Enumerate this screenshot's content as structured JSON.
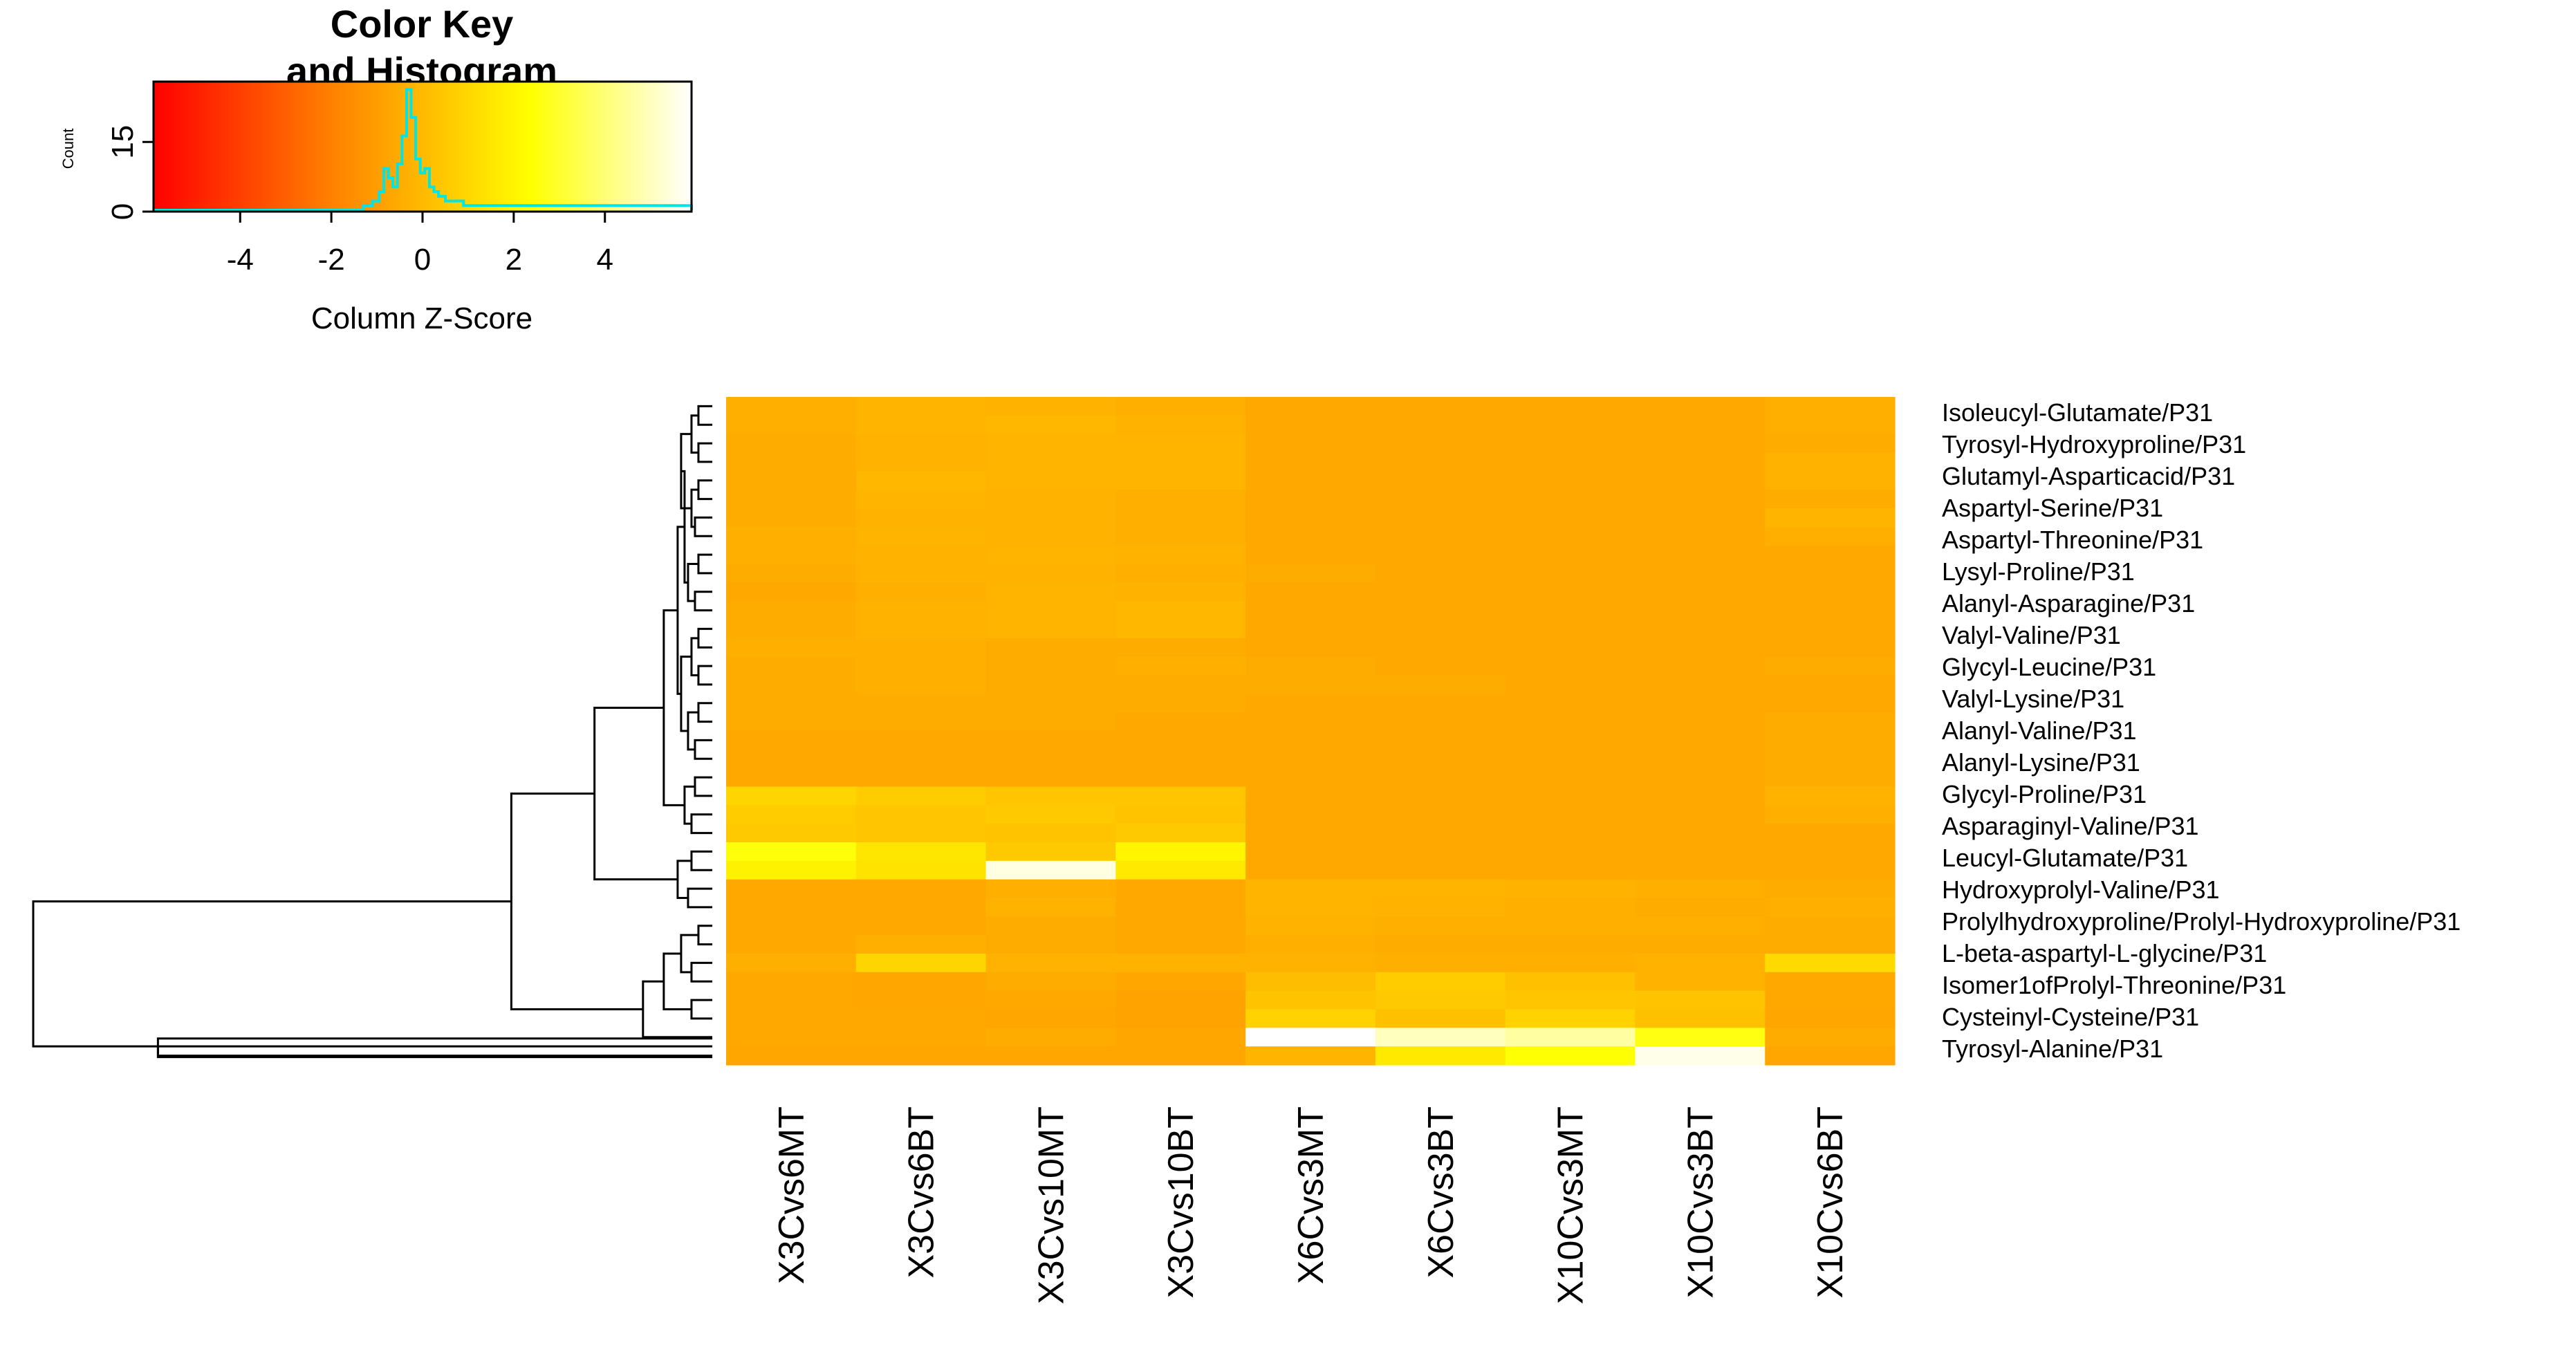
{
  "chart_data": {
    "type": "heatmap",
    "title": "",
    "color_key": {
      "title_line1": "Color Key",
      "title_line2": "and Histogram",
      "xlabel": "Column Z-Score",
      "ylabel": "Count",
      "xlim": [
        -5.9,
        5.9
      ],
      "ylim": [
        0,
        28
      ],
      "x_ticks": [
        -4,
        -2,
        0,
        2,
        4
      ],
      "y_ticks": [
        0,
        15
      ],
      "colors": [
        "#ff0000",
        "#ff8000",
        "#ffff00",
        "#ffffff"
      ],
      "histogram_color": "#00e5e5",
      "histogram": [
        [
          -1.3,
          1
        ],
        [
          -1.1,
          2
        ],
        [
          -0.95,
          4
        ],
        [
          -0.85,
          9
        ],
        [
          -0.75,
          7
        ],
        [
          -0.65,
          5
        ],
        [
          -0.55,
          10
        ],
        [
          -0.45,
          16
        ],
        [
          -0.35,
          26
        ],
        [
          -0.25,
          20
        ],
        [
          -0.15,
          11
        ],
        [
          -0.05,
          8
        ],
        [
          0.05,
          9
        ],
        [
          0.15,
          5
        ],
        [
          0.25,
          4
        ],
        [
          0.35,
          3
        ],
        [
          0.5,
          2
        ],
        [
          0.7,
          2
        ],
        [
          0.9,
          1
        ],
        [
          1.1,
          1
        ],
        [
          1.4,
          1
        ],
        [
          1.8,
          1
        ],
        [
          2.2,
          1
        ],
        [
          2.6,
          1
        ],
        [
          3.0,
          1
        ],
        [
          3.5,
          1
        ],
        [
          4.0,
          1
        ],
        [
          4.6,
          1
        ],
        [
          5.3,
          1
        ],
        [
          5.8,
          1
        ]
      ]
    },
    "columns": [
      "X3Cvs6MT",
      "X3Cvs6BT",
      "X3Cvs10MT",
      "X3Cvs10BT",
      "X6Cvs3MT",
      "X6Cvs3BT",
      "X10Cvs3MT",
      "X10Cvs3BT",
      "X10Cvs6BT"
    ],
    "labeled_rows": [
      "Isoleucyl-Glutamate/P31",
      "Tyrosyl-Hydroxyproline/P31",
      "Glutamyl-Asparticacid/P31",
      "Aspartyl-Serine/P31",
      "Aspartyl-Threonine/P31",
      "Lysyl-Proline/P31",
      "Alanyl-Asparagine/P31",
      "Valyl-Valine/P31",
      "Glycyl-Leucine/P31",
      "Valyl-Lysine/P31",
      "Alanyl-Valine/P31",
      "Alanyl-Lysine/P31",
      "Glycyl-Proline/P31",
      "Asparaginyl-Valine/P31",
      "Leucyl-Glutamate/P31",
      "Hydroxyprolyl-Valine/P31",
      "Prolylhydroxyproline/Prolyl-Hydroxyproline/P31",
      "L-beta-aspartyl-L-glycine/P31",
      "Isomer1ofProlyl-Threonine/P31",
      "Cysteinyl-Cysteine/P31",
      "Tyrosyl-Alanine/P31"
    ],
    "values": [
      [
        -0.4,
        -0.2,
        -0.3,
        -0.4,
        -0.6,
        -0.6,
        -0.6,
        -0.6,
        -0.4
      ],
      [
        -0.4,
        -0.2,
        -0.1,
        -0.3,
        -0.6,
        -0.6,
        -0.6,
        -0.6,
        -0.4
      ],
      [
        -0.5,
        -0.3,
        -0.2,
        -0.2,
        -0.6,
        -0.6,
        -0.6,
        -0.6,
        -0.5
      ],
      [
        -0.5,
        -0.3,
        -0.2,
        -0.2,
        -0.6,
        -0.6,
        -0.6,
        -0.6,
        -0.3
      ],
      [
        -0.5,
        -0.1,
        -0.2,
        -0.2,
        -0.6,
        -0.6,
        -0.6,
        -0.6,
        -0.3
      ],
      [
        -0.5,
        -0.2,
        -0.3,
        -0.4,
        -0.6,
        -0.6,
        -0.6,
        -0.6,
        -0.5
      ],
      [
        -0.5,
        -0.3,
        -0.3,
        -0.4,
        -0.6,
        -0.6,
        -0.6,
        -0.6,
        -0.2
      ],
      [
        -0.4,
        -0.2,
        -0.3,
        -0.4,
        -0.6,
        -0.6,
        -0.6,
        -0.6,
        -0.4
      ],
      [
        -0.4,
        -0.3,
        -0.2,
        -0.3,
        -0.6,
        -0.6,
        -0.6,
        -0.6,
        -0.6
      ],
      [
        -0.5,
        -0.3,
        -0.3,
        -0.4,
        -0.5,
        -0.6,
        -0.6,
        -0.6,
        -0.6
      ],
      [
        -0.6,
        -0.4,
        -0.2,
        -0.3,
        -0.6,
        -0.6,
        -0.6,
        -0.6,
        -0.6
      ],
      [
        -0.5,
        -0.3,
        -0.2,
        -0.1,
        -0.6,
        -0.6,
        -0.6,
        -0.6,
        -0.6
      ],
      [
        -0.5,
        -0.3,
        -0.2,
        -0.1,
        -0.6,
        -0.6,
        -0.6,
        -0.6,
        -0.6
      ],
      [
        -0.4,
        -0.4,
        -0.5,
        -0.5,
        -0.6,
        -0.6,
        -0.6,
        -0.6,
        -0.6
      ],
      [
        -0.5,
        -0.4,
        -0.5,
        -0.4,
        -0.5,
        -0.6,
        -0.6,
        -0.6,
        -0.5
      ],
      [
        -0.5,
        -0.4,
        -0.5,
        -0.5,
        -0.5,
        -0.5,
        -0.6,
        -0.6,
        -0.6
      ],
      [
        -0.5,
        -0.5,
        -0.5,
        -0.5,
        -0.6,
        -0.6,
        -0.6,
        -0.6,
        -0.6
      ],
      [
        -0.5,
        -0.5,
        -0.5,
        -0.6,
        -0.6,
        -0.6,
        -0.6,
        -0.6,
        -0.5
      ],
      [
        -0.6,
        -0.6,
        -0.6,
        -0.6,
        -0.6,
        -0.6,
        -0.6,
        -0.6,
        -0.5
      ],
      [
        -0.6,
        -0.6,
        -0.6,
        -0.6,
        -0.6,
        -0.6,
        -0.6,
        -0.6,
        -0.5
      ],
      [
        -0.6,
        -0.6,
        -0.6,
        -0.6,
        -0.6,
        -0.6,
        -0.6,
        -0.6,
        -0.5
      ],
      [
        0.9,
        0.6,
        0.4,
        0.4,
        -0.6,
        -0.6,
        -0.6,
        -0.6,
        -0.3
      ],
      [
        0.6,
        0.4,
        0.5,
        0.3,
        -0.6,
        -0.6,
        -0.6,
        -0.6,
        -0.4
      ],
      [
        0.5,
        0.4,
        0.3,
        0.5,
        -0.6,
        -0.6,
        -0.6,
        -0.6,
        -0.6
      ],
      [
        2.5,
        1.5,
        0.5,
        2.0,
        -0.6,
        -0.6,
        -0.6,
        -0.6,
        -0.6
      ],
      [
        1.9,
        1.4,
        5.5,
        1.6,
        -0.6,
        -0.6,
        -0.6,
        -0.6,
        -0.6
      ],
      [
        -0.6,
        -0.6,
        -0.4,
        -0.6,
        -0.2,
        -0.2,
        -0.3,
        -0.4,
        -0.5
      ],
      [
        -0.6,
        -0.6,
        -0.3,
        -0.6,
        -0.2,
        -0.3,
        -0.4,
        -0.5,
        -0.4
      ],
      [
        -0.6,
        -0.6,
        -0.5,
        -0.6,
        -0.3,
        -0.4,
        -0.4,
        -0.4,
        -0.5
      ],
      [
        -0.6,
        -0.4,
        -0.5,
        -0.6,
        -0.4,
        -0.5,
        -0.5,
        -0.5,
        -0.5
      ],
      [
        -0.4,
        0.9,
        -0.3,
        -0.3,
        -0.3,
        -0.4,
        -0.4,
        -0.3,
        1.1
      ],
      [
        -0.6,
        -0.7,
        -0.5,
        -0.7,
        0.1,
        0.6,
        0.2,
        -0.3,
        -0.6
      ],
      [
        -0.6,
        -0.7,
        -0.6,
        -0.8,
        0.3,
        0.5,
        0.4,
        0.3,
        -0.6
      ],
      [
        -0.6,
        -0.6,
        -0.7,
        -0.8,
        0.8,
        0.2,
        0.8,
        0.2,
        -0.7
      ],
      [
        -0.6,
        -0.6,
        -0.5,
        -0.7,
        5.9,
        5.0,
        4.6,
        2.6,
        -0.5
      ],
      [
        -0.7,
        -0.7,
        -0.7,
        -0.7,
        -0.2,
        1.6,
        2.4,
        5.6,
        -0.7
      ]
    ],
    "row_dendrogram": "present",
    "column_dendrogram": "none"
  }
}
